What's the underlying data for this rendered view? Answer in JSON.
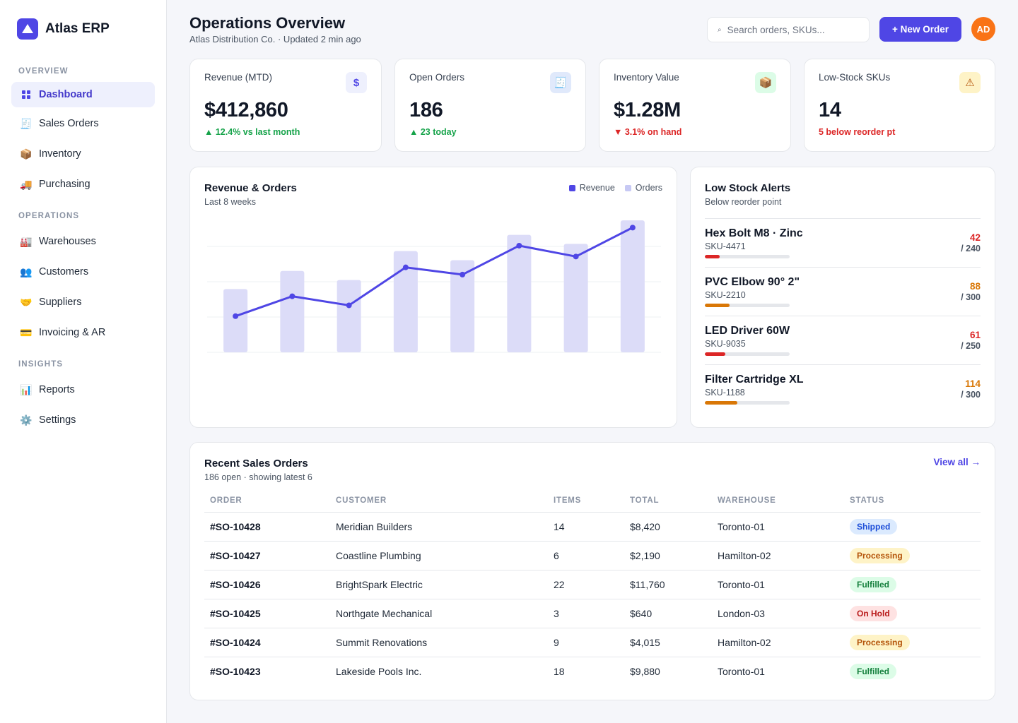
{
  "app": {
    "name": "Atlas ERP"
  },
  "sidebar": {
    "sections": [
      {
        "label": "OVERVIEW",
        "items": [
          {
            "label": "Dashboard",
            "icon": "grid-icon",
            "active": true
          },
          {
            "label": "Sales Orders",
            "icon": "receipt-icon",
            "glyph": "🧾"
          },
          {
            "label": "Inventory",
            "icon": "package-icon",
            "glyph": "📦"
          },
          {
            "label": "Purchasing",
            "icon": "truck-icon",
            "glyph": "🚚"
          }
        ]
      },
      {
        "label": "OPERATIONS",
        "items": [
          {
            "label": "Warehouses",
            "icon": "factory-icon",
            "glyph": "🏭"
          },
          {
            "label": "Customers",
            "icon": "users-icon",
            "glyph": "👥"
          },
          {
            "label": "Suppliers",
            "icon": "handshake-icon",
            "glyph": "🤝"
          },
          {
            "label": "Invoicing & AR",
            "icon": "credit-card-icon",
            "glyph": "💳"
          }
        ]
      },
      {
        "label": "INSIGHTS",
        "items": [
          {
            "label": "Reports",
            "icon": "bar-chart-icon",
            "glyph": "📊"
          },
          {
            "label": "Settings",
            "icon": "gear-icon",
            "glyph": "⚙️"
          }
        ]
      }
    ]
  },
  "header": {
    "title": "Operations Overview",
    "subtitle": "Atlas Distribution Co. · Updated 2 min ago",
    "search_placeholder": "Search orders, SKUs...",
    "new_order_label": "+ New Order",
    "avatar_initials": "AD"
  },
  "kpis": [
    {
      "label": "Revenue (MTD)",
      "value": "$412,860",
      "delta": "12.4% vs last month",
      "trend": "up",
      "icon": "dollar-icon",
      "glyph": "$",
      "icon_bg": "#eef0fd",
      "icon_color": "#4f46e5"
    },
    {
      "label": "Open Orders",
      "value": "186",
      "delta": "23 today",
      "trend": "up",
      "icon": "receipt-icon",
      "glyph": "🧾",
      "icon_bg": "#e0e9fb",
      "icon_color": "#1d4ed8"
    },
    {
      "label": "Inventory Value",
      "value": "$1.28M",
      "delta": "3.1% on hand",
      "trend": "down",
      "icon": "package-icon",
      "glyph": "📦",
      "icon_bg": "#dcfce7",
      "icon_color": "#15803d"
    },
    {
      "label": "Low-Stock SKUs",
      "value": "14",
      "delta": "5 below reorder pt",
      "trend": "warn",
      "icon": "warning-icon",
      "glyph": "⚠",
      "icon_bg": "#fef3c7",
      "icon_color": "#b45309"
    }
  ],
  "chart_data": {
    "type": "bar",
    "title": "Revenue & Orders",
    "subtitle": "Last 8 weeks",
    "legend_placement": "top-right",
    "grid": true,
    "ylim": [
      0,
      150
    ],
    "categories": [
      "",
      "",
      "",
      "",
      "",
      "",
      "",
      ""
    ],
    "series": [
      {
        "name": "Revenue",
        "type": "line",
        "color": "#4f46e5",
        "values": [
          40,
          62,
          52,
          94,
          86,
          118,
          106,
          138
        ]
      },
      {
        "name": "Orders",
        "type": "bar",
        "color": "#dcdcf8",
        "values": [
          70,
          90,
          80,
          112,
          102,
          130,
          120,
          146
        ]
      }
    ]
  },
  "low_stock": {
    "title": "Low Stock Alerts",
    "subtitle": "Below reorder point",
    "items": [
      {
        "name": "Hex Bolt M8 · Zinc",
        "sku": "SKU-4471",
        "qty": "42",
        "max": "/ 240",
        "fraction": 0.175,
        "color": "#dc2626"
      },
      {
        "name": "PVC Elbow 90° 2\"",
        "sku": "SKU-2210",
        "qty": "88",
        "max": "/ 300",
        "fraction": 0.293,
        "color": "#d97706"
      },
      {
        "name": "LED Driver 60W",
        "sku": "SKU-9035",
        "qty": "61",
        "max": "/ 250",
        "fraction": 0.244,
        "color": "#dc2626"
      },
      {
        "name": "Filter Cartridge XL",
        "sku": "SKU-1188",
        "qty": "114",
        "max": "/ 300",
        "fraction": 0.38,
        "color": "#d97706"
      }
    ]
  },
  "orders": {
    "title": "Recent Sales Orders",
    "subtitle": "186 open · showing latest 6",
    "view_all_label": "View all →",
    "columns": [
      "ORDER",
      "CUSTOMER",
      "ITEMS",
      "TOTAL",
      "WAREHOUSE",
      "STATUS"
    ],
    "rows": [
      {
        "order": "#SO-10428",
        "customer": "Meridian Builders",
        "items": "14",
        "total": "$8,420",
        "warehouse": "Toronto-01",
        "status": "Shipped",
        "status_kind": "shipped"
      },
      {
        "order": "#SO-10427",
        "customer": "Coastline Plumbing",
        "items": "6",
        "total": "$2,190",
        "warehouse": "Hamilton-02",
        "status": "Processing",
        "status_kind": "processing"
      },
      {
        "order": "#SO-10426",
        "customer": "BrightSpark Electric",
        "items": "22",
        "total": "$11,760",
        "warehouse": "Toronto-01",
        "status": "Fulfilled",
        "status_kind": "fulfilled"
      },
      {
        "order": "#SO-10425",
        "customer": "Northgate Mechanical",
        "items": "3",
        "total": "$640",
        "warehouse": "London-03",
        "status": "On Hold",
        "status_kind": "hold"
      },
      {
        "order": "#SO-10424",
        "customer": "Summit Renovations",
        "items": "9",
        "total": "$4,015",
        "warehouse": "Hamilton-02",
        "status": "Processing",
        "status_kind": "processing"
      },
      {
        "order": "#SO-10423",
        "customer": "Lakeside Pools Inc.",
        "items": "18",
        "total": "$9,880",
        "warehouse": "Toronto-01",
        "status": "Fulfilled",
        "status_kind": "fulfilled"
      }
    ]
  }
}
